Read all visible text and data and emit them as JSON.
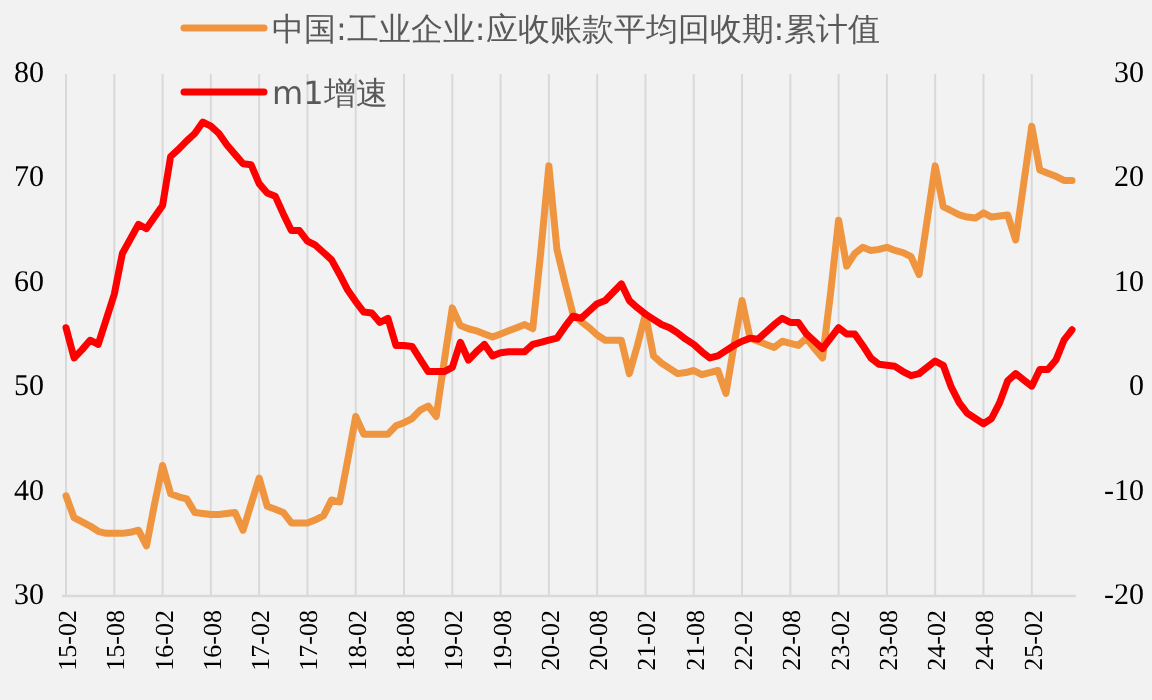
{
  "chart_data": {
    "type": "line",
    "categories": [
      "15-02",
      null,
      null,
      null,
      null,
      null,
      "15-08",
      null,
      null,
      null,
      null,
      null,
      "16-02",
      null,
      null,
      null,
      null,
      null,
      "16-08",
      null,
      null,
      null,
      null,
      null,
      "17-02",
      null,
      null,
      null,
      null,
      null,
      "17-08",
      null,
      null,
      null,
      null,
      null,
      "18-02",
      null,
      null,
      null,
      null,
      null,
      "18-08",
      null,
      null,
      null,
      null,
      null,
      "19-02",
      null,
      null,
      null,
      null,
      null,
      "19-08",
      null,
      null,
      null,
      null,
      null,
      "20-02",
      null,
      null,
      null,
      null,
      null,
      "20-08",
      null,
      null,
      null,
      null,
      null,
      "21-02",
      null,
      null,
      null,
      null,
      null,
      "21-08",
      null,
      null,
      null,
      null,
      null,
      "22-02",
      null,
      null,
      null,
      null,
      null,
      "22-08",
      null,
      null,
      null,
      null,
      null,
      "23-02",
      null,
      null,
      null,
      null,
      null,
      "23-08",
      null,
      null,
      null,
      null,
      null,
      "24-02",
      null,
      null,
      null,
      null,
      null,
      "24-08",
      null,
      null,
      null,
      null,
      null,
      "25-02",
      null,
      null,
      null,
      null,
      null
    ],
    "series": [
      {
        "name": "中国:工业企业:应收账款平均回收期:累计值",
        "color": "#f0953f",
        "values": [
          39.6,
          37.5,
          37.1,
          36.7,
          36.2,
          36,
          36,
          36,
          36.1,
          36.3,
          34.8,
          38.8,
          42.5,
          39.8,
          39.5,
          39.3,
          38,
          37.9,
          37.8,
          37.8,
          37.9,
          38,
          36.3,
          38.8,
          41.3,
          38.6,
          38.3,
          38,
          37,
          37,
          37,
          37.3,
          37.7,
          39.2,
          39,
          43,
          47.2,
          45.5,
          45.5,
          45.5,
          45.5,
          46.3,
          46.6,
          47,
          47.8,
          48.2,
          47.2,
          52.5,
          57.6,
          55.9,
          55.6,
          55.4,
          55.1,
          54.8,
          55.1,
          55.4,
          55.7,
          56,
          55.6,
          63,
          71.2,
          63.2,
          60,
          57,
          56.3,
          55.7,
          55,
          54.5,
          54.5,
          54.5,
          51.3,
          54,
          57,
          53,
          52.3,
          51.8,
          51.3,
          51.4,
          51.6,
          51.2,
          51.4,
          51.6,
          49.4,
          54,
          58.3,
          54.7,
          54.4,
          54.1,
          53.8,
          54.4,
          54.2,
          54,
          54.7,
          53.7,
          52.8,
          59,
          66,
          61.6,
          62.8,
          63.4,
          63.1,
          63.2,
          63.4,
          63.1,
          62.9,
          62.5,
          60.8,
          66,
          71.2,
          67.3,
          66.9,
          66.5,
          66.3,
          66.2,
          66.7,
          66.3,
          66.4,
          66.5,
          64.1,
          69.5,
          75,
          70.8,
          70.5,
          70.2,
          69.8,
          69.8
        ]
      },
      {
        "name": "m1增速",
        "color": "#ff0000",
        "axis": "y2",
        "values": [
          5.7,
          2.8,
          3.6,
          4.5,
          4.1,
          6.5,
          8.9,
          12.8,
          14.2,
          15.6,
          15.2,
          16.3,
          17.4,
          22.1,
          22.8,
          23.6,
          24.3,
          25.4,
          25,
          24.3,
          23.2,
          22.3,
          21.4,
          21.3,
          19.5,
          18.6,
          18.3,
          16.6,
          15,
          15,
          14,
          13.6,
          12.9,
          12.2,
          10.8,
          9.3,
          8.2,
          7.2,
          7.1,
          6.2,
          6.6,
          4,
          4,
          3.9,
          2.7,
          1.5,
          1.5,
          1.5,
          1.9,
          4.3,
          2.6,
          3.4,
          4.1,
          3,
          3.3,
          3.4,
          3.4,
          3.4,
          4.1,
          4.3,
          4.5,
          4.7,
          5.8,
          6.8,
          6.6,
          7.3,
          8,
          8.3,
          9.1,
          9.9,
          8.3,
          7.6,
          7,
          6.5,
          6,
          5.7,
          5.2,
          4.6,
          4.1,
          3.4,
          2.8,
          3,
          3.5,
          4,
          4.4,
          4.7,
          4.6,
          5.3,
          6,
          6.6,
          6.2,
          6.2,
          5.1,
          4.4,
          3.7,
          4.7,
          5.7,
          5.1,
          5.1,
          4,
          2.8,
          2.2,
          2.1,
          2,
          1.5,
          1.1,
          1.3,
          1.9,
          2.5,
          2.1,
          0,
          -1.5,
          -2.5,
          -3,
          -3.5,
          -3,
          -1.5,
          0.6,
          1.3,
          0.7,
          0.1,
          1.7,
          1.7,
          2.6,
          4.5,
          5.5
        ]
      }
    ],
    "ylim": [
      30,
      80
    ],
    "yticks": [
      30,
      40,
      50,
      60,
      70,
      80
    ],
    "y2lim": [
      -20,
      30
    ],
    "y2ticks": [
      -20,
      -10,
      0,
      10,
      20,
      30
    ],
    "grid": "x",
    "legend": "top",
    "marker": "none",
    "line_style": "solid"
  }
}
